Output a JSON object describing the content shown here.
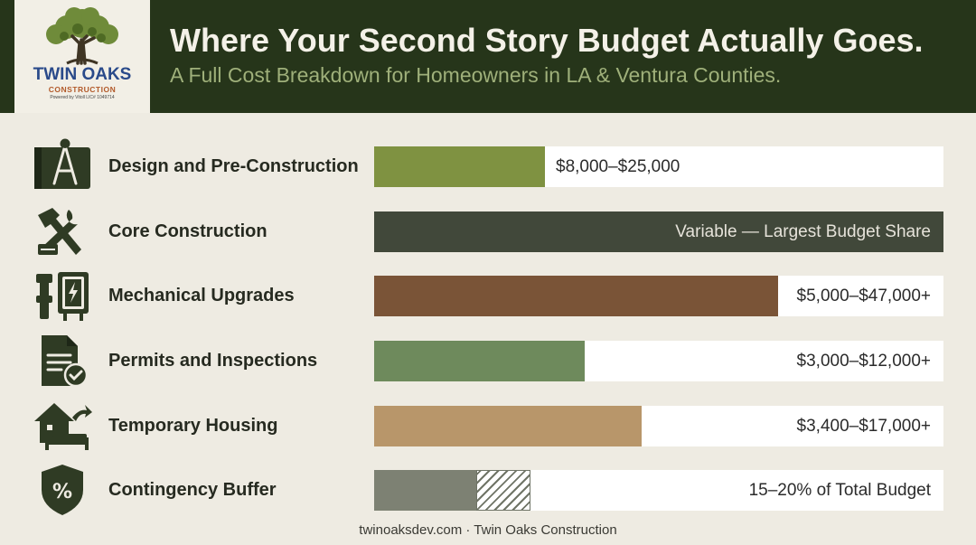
{
  "header": {
    "title": "Where Your Second Story Budget Actually Goes.",
    "subtitle": "A Full Cost Breakdown for Homeowners in LA & Ventura Counties."
  },
  "logo": {
    "name": "TWIN OAKS",
    "sub": "CONSTRUCTION",
    "tag": "Powered by Vitoll LIC# 1049714",
    "icon": "oak-tree-icon"
  },
  "colors": {
    "header_bg": "#26351a",
    "page_bg": "#eeebe2",
    "design": "#7f9241",
    "core": "#41483a",
    "mechanical": "#7a5437",
    "permits": "#6e8a5c",
    "housing": "#b8966a",
    "contingency": "#7d8173"
  },
  "chart_data": {
    "type": "bar",
    "orientation": "horizontal",
    "categories": [
      "Design and Pre-Construction",
      "Core Construction",
      "Mechanical Upgrades",
      "Permits and Inspections",
      "Temporary Housing",
      "Contingency Buffer"
    ],
    "values": [
      0.3,
      1.0,
      0.71,
      0.37,
      0.47,
      0.18
    ],
    "extra_hatched": [
      0,
      0,
      0,
      0,
      0,
      0.095
    ],
    "value_labels": [
      "$8,000–$25,000",
      "Variable — Largest Budget Share",
      "$5,000–$47,000+",
      "$3,000–$12,000+",
      "$3,400–$17,000+",
      "15–20% of Total Budget"
    ],
    "icons": [
      "blueprint-compass-icon",
      "hammer-wrench-icon",
      "plumbing-electrical-icon",
      "permit-document-check-icon",
      "house-bed-icon",
      "shield-percent-icon"
    ],
    "xlim": [
      0,
      1
    ],
    "grid": false,
    "legend": "none"
  },
  "footer": {
    "text": "twinoaksdev.com · Twin Oaks Construction"
  }
}
